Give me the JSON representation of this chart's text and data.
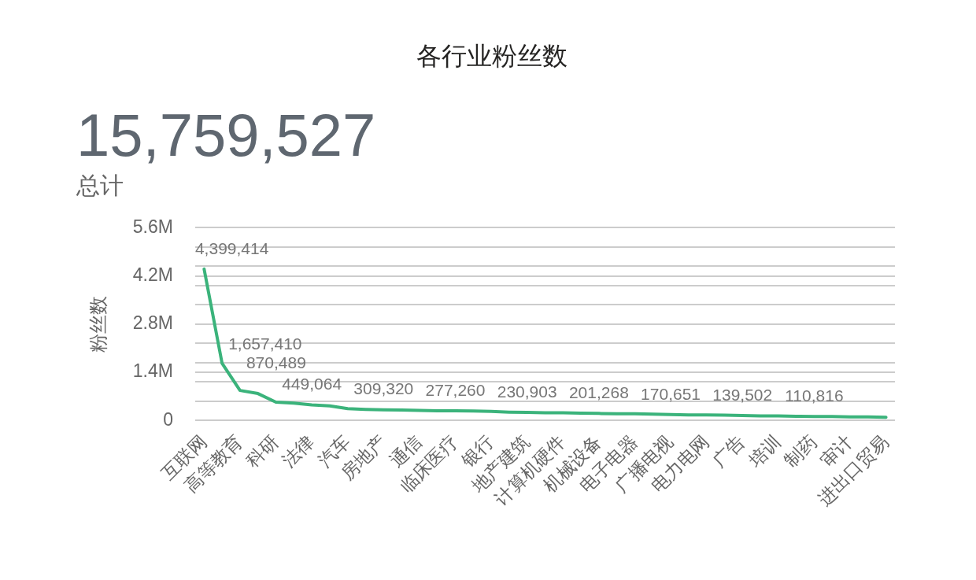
{
  "chart_data": {
    "type": "line",
    "title": "各行业粉丝数",
    "ylabel": "粉丝数",
    "annotations": [
      "15,759,527",
      "总计"
    ],
    "categories": [
      "互联网",
      null,
      "高等教育",
      null,
      "科研",
      null,
      "法律",
      null,
      "汽车",
      null,
      "房地产",
      null,
      "通信",
      null,
      "临床医疗",
      null,
      "银行",
      null,
      "地产建筑",
      null,
      "计算机硬件",
      null,
      "机械设备",
      null,
      "电子电器",
      null,
      "广播电视",
      null,
      "电力电网",
      null,
      "广告",
      null,
      "培训",
      null,
      "制药",
      null,
      "审计",
      null,
      "进出口贸易"
    ],
    "values": [
      4399414,
      1657410,
      870489,
      780000,
      530000,
      500000,
      449064,
      420000,
      340000,
      320000,
      309320,
      300000,
      290000,
      280000,
      277260,
      270000,
      260000,
      240000,
      230903,
      220000,
      220000,
      210000,
      201268,
      190000,
      190000,
      180000,
      170651,
      160000,
      160000,
      150000,
      139502,
      130000,
      130000,
      120000,
      110816,
      110000,
      100000,
      100000,
      90000
    ],
    "value_labels": [
      "4,399,414",
      "1,657,410",
      "870,489",
      null,
      null,
      null,
      "449,064",
      null,
      null,
      null,
      "309,320",
      null,
      null,
      null,
      "277,260",
      null,
      null,
      null,
      "230,903",
      null,
      null,
      null,
      "201,268",
      null,
      null,
      null,
      "170,651",
      null,
      null,
      null,
      "139,502",
      null,
      null,
      null,
      "110,816",
      null,
      null,
      null,
      null
    ],
    "color": "#3bb37b",
    "ylim": [
      0,
      5600000
    ],
    "yticks": [
      0,
      {
        "value": 560000,
        "label": null
      },
      {
        "value": 1120000,
        "label": null
      },
      {
        "value": 1400000,
        "label": "1.4M"
      },
      {
        "value": 1680000,
        "label": null
      },
      {
        "value": 2240000,
        "label": null
      },
      {
        "value": 2800000,
        "label": "2.8M"
      },
      {
        "value": 3360000,
        "label": null
      },
      {
        "value": 3920000,
        "label": null
      },
      {
        "value": 4200000,
        "label": "4.2M"
      },
      {
        "value": 4480000,
        "label": null
      },
      {
        "value": 5040000,
        "label": null
      },
      {
        "value": 5600000,
        "label": "5.6M"
      }
    ],
    "grid": "y"
  }
}
